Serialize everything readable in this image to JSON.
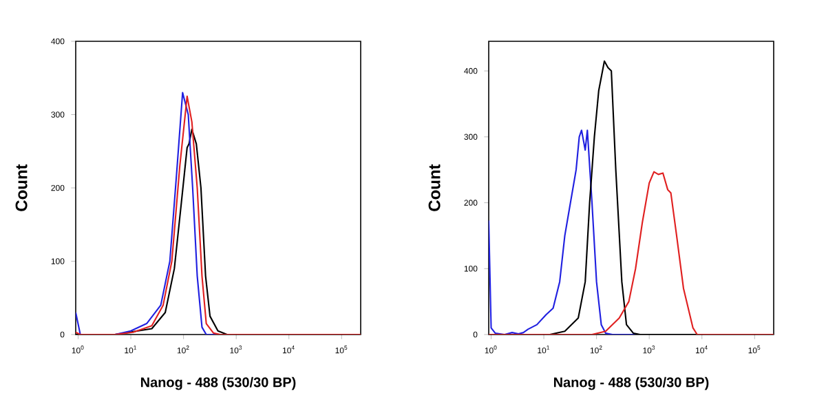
{
  "chart_data": [
    {
      "type": "line",
      "xlabel": "Nanog - 488 (530/30 BP)",
      "ylabel": "Count",
      "log": "x",
      "xlim": [
        0.9,
        230000
      ],
      "ylim": [
        0,
        400
      ],
      "xticks": [
        {
          "value": 1,
          "label": "10$^{0}$"
        },
        {
          "value": 10,
          "label": "10$^{1}$"
        },
        {
          "value": 100,
          "label": "10$^{2}$"
        },
        {
          "value": 1000,
          "label": "10$^{3}$"
        },
        {
          "value": 10000,
          "label": "10$^{4}$"
        },
        {
          "value": 100000,
          "label": "10$^{5}$"
        }
      ],
      "yticks": [
        0,
        100,
        200,
        300,
        400
      ],
      "series": [
        {
          "color": "#000000",
          "x": [
            0.9,
            5,
            25,
            45,
            67,
            91,
            117,
            127,
            144,
            175,
            214,
            262,
            318,
            450,
            670,
            230000
          ],
          "values": [
            0,
            0,
            8,
            30,
            90,
            180,
            255,
            260,
            280,
            260,
            200,
            80,
            25,
            5,
            0,
            0
          ]
        },
        {
          "color": "#2020e0",
          "x": [
            0.9,
            1.1,
            5,
            10,
            20,
            37,
            55,
            74,
            96,
            123,
            149,
            182,
            224,
            270,
            230000
          ],
          "values": [
            30,
            0,
            0,
            5,
            15,
            40,
            100,
            220,
            330,
            300,
            200,
            80,
            10,
            0,
            0
          ]
        },
        {
          "color": "#e02020",
          "x": [
            0.9,
            1.1,
            5,
            11,
            25,
            41,
            60,
            85,
            117,
            144,
            182,
            224,
            270,
            370,
            500,
            230000
          ],
          "values": [
            3,
            0,
            0,
            3,
            12,
            40,
            100,
            230,
            325,
            290,
            200,
            80,
            15,
            2,
            0,
            0
          ]
        }
      ]
    },
    {
      "type": "line",
      "xlabel": "Nanog - 488 (530/30 BP)",
      "ylabel": "Count",
      "log": "x",
      "xlim": [
        0.9,
        230000
      ],
      "ylim": [
        0,
        445
      ],
      "xticks": [
        {
          "value": 1,
          "label": "10$^{0}$"
        },
        {
          "value": 10,
          "label": "10$^{1}$"
        },
        {
          "value": 100,
          "label": "10$^{2}$"
        },
        {
          "value": 1000,
          "label": "10$^{3}$"
        },
        {
          "value": 10000,
          "label": "10$^{4}$"
        },
        {
          "value": 100000,
          "label": "10$^{5}$"
        }
      ],
      "yticks": [
        0,
        100,
        200,
        300,
        400
      ],
      "series": [
        {
          "color": "#2020e0",
          "x": [
            0.9,
            1.0,
            1.2,
            1.8,
            2.5,
            3.3,
            4.1,
            5,
            7.4,
            11,
            15,
            20,
            25,
            32,
            41,
            47,
            52,
            61,
            67,
            82,
            100,
            123,
            149,
            200,
            230000
          ],
          "values": [
            173,
            10,
            2,
            0,
            3,
            1,
            3,
            8,
            15,
            30,
            40,
            80,
            150,
            200,
            250,
            300,
            310,
            280,
            310,
            200,
            80,
            15,
            2,
            0,
            0
          ]
        },
        {
          "color": "#000000",
          "x": [
            0.9,
            13,
            25,
            45,
            61,
            74,
            91,
            110,
            141,
            165,
            191,
            232,
            302,
            370,
            500,
            670,
            230000
          ],
          "values": [
            0,
            0,
            5,
            25,
            80,
            200,
            300,
            370,
            415,
            405,
            400,
            250,
            80,
            15,
            2,
            0,
            0
          ]
        },
        {
          "color": "#e02020",
          "x": [
            0.9,
            82,
            149,
            270,
            410,
            550,
            740,
            1000,
            1230,
            1490,
            1820,
            2240,
            2570,
            3310,
            4470,
            6760,
            8130,
            230000
          ],
          "values": [
            0,
            0,
            5,
            25,
            50,
            100,
            170,
            230,
            247,
            243,
            245,
            220,
            215,
            150,
            70,
            10,
            0,
            0
          ]
        }
      ]
    }
  ]
}
